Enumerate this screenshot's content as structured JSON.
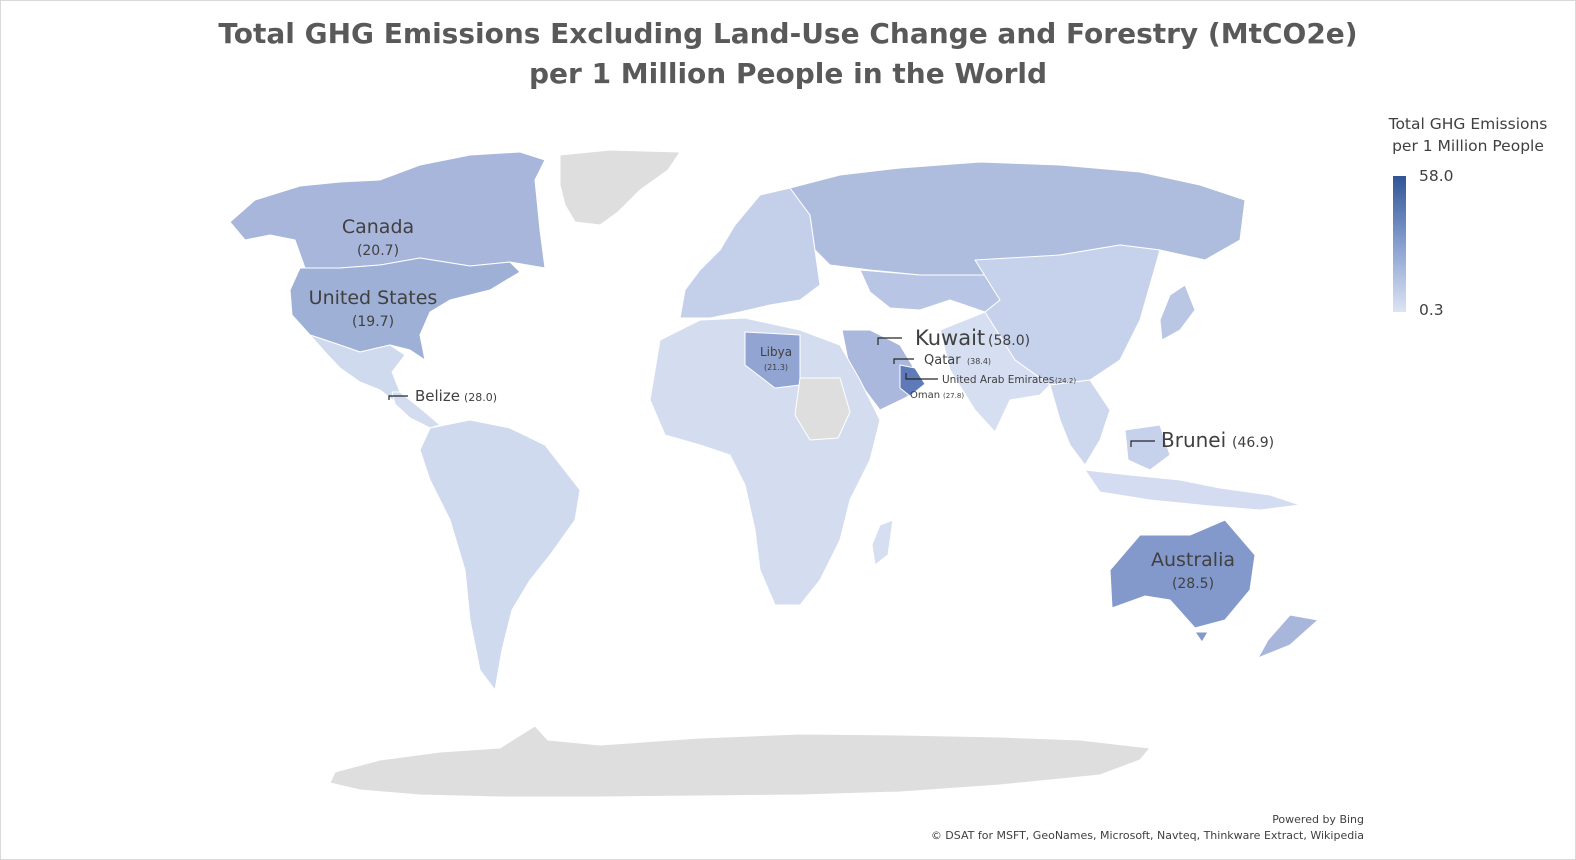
{
  "title": {
    "line1": "Total GHG Emissions Excluding Land-Use Change and Forestry (MtCO2e)",
    "line2": "per 1 Million People in the World"
  },
  "legend": {
    "title_line1": "Total GHG Emissions",
    "title_line2": "per 1 Million People",
    "max": "58.0",
    "min": "0.3",
    "color_high": "#2f5597",
    "color_low": "#dce4f3"
  },
  "labels": {
    "canada": {
      "name": "Canada",
      "value": "(20.7)"
    },
    "united_states": {
      "name": "United States",
      "value": "(19.7)"
    },
    "belize": {
      "name": "Belize",
      "value": "(28.0)"
    },
    "libya": {
      "name": "Libya",
      "value": "(21.3)"
    },
    "kuwait": {
      "name": "Kuwait",
      "value": "(58.0)"
    },
    "qatar": {
      "name": "Qatar",
      "value": "(38.4)"
    },
    "uae": {
      "name": "United Arab Emirates",
      "value": "(24.2)"
    },
    "oman": {
      "name": "Oman",
      "value": "(27.8)"
    },
    "brunei": {
      "name": "Brunei",
      "value": "(46.9)"
    },
    "australia": {
      "name": "Australia",
      "value": "(28.5)"
    }
  },
  "credits": {
    "line1": "Powered by Bing",
    "line2": "© DSAT for MSFT, GeoNames, Microsoft, Navteq, Thinkware Extract, Wikipedia"
  }
}
